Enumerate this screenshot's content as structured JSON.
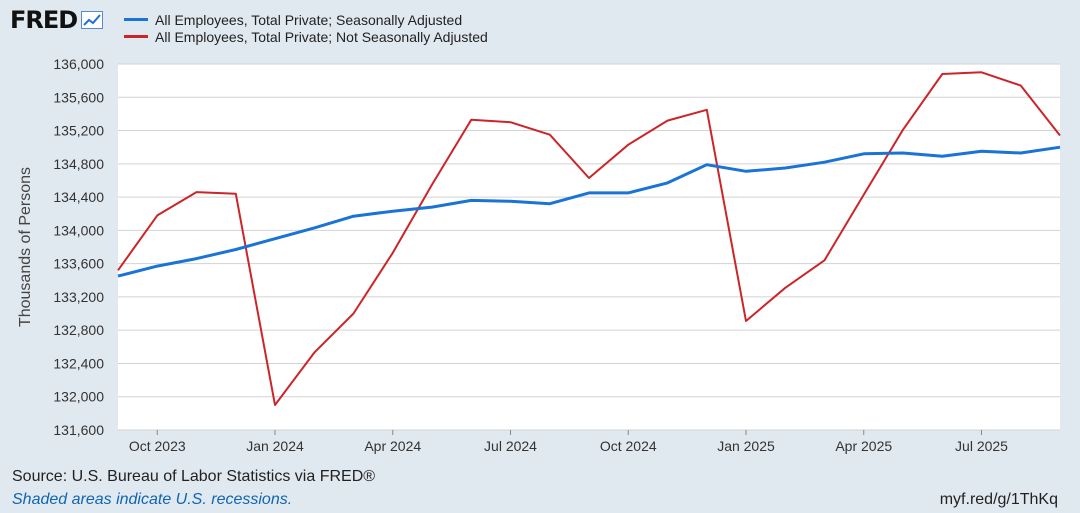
{
  "brand": {
    "logo_text": "FRED",
    "logo_icon": "chart-line-icon"
  },
  "footer": {
    "source": "Source: U.S. Bureau of Labor Statistics via FRED®",
    "note": "Shaded areas indicate U.S. recessions.",
    "url": "myf.red/g/1ThKq"
  },
  "colors": {
    "seasonally_adjusted": "#1a73d6",
    "not_seasonally_adjusted": "#cc2529",
    "plot_bg": "#ffffff",
    "page_bg": "#e1e9f0",
    "grid": "#cfcfcf"
  },
  "chart_data": {
    "type": "line",
    "title": "",
    "xlabel": "",
    "ylabel": "Thousands of Persons",
    "ylim": [
      131600,
      136000
    ],
    "y_ticks": [
      131600,
      132000,
      132400,
      132800,
      133200,
      133600,
      134000,
      134400,
      134800,
      135200,
      135600,
      136000
    ],
    "y_tick_labels": [
      "131,600",
      "132,000",
      "132,400",
      "132,800",
      "133,200",
      "133,600",
      "134,000",
      "134,400",
      "134,800",
      "135,200",
      "135,600",
      "136,000"
    ],
    "x_ticks": [
      "2023-10",
      "2024-01",
      "2024-04",
      "2024-07",
      "2024-10",
      "2025-01",
      "2025-04",
      "2025-07"
    ],
    "x_tick_labels": [
      "Oct 2023",
      "Jan 2024",
      "Apr 2024",
      "Jul 2024",
      "Oct 2024",
      "Jan 2025",
      "Apr 2025",
      "Jul 2025"
    ],
    "x": [
      "2023-09",
      "2023-10",
      "2023-11",
      "2023-12",
      "2024-01",
      "2024-02",
      "2024-03",
      "2024-04",
      "2024-05",
      "2024-06",
      "2024-07",
      "2024-08",
      "2024-09",
      "2024-10",
      "2024-11",
      "2024-12",
      "2025-01",
      "2025-02",
      "2025-03",
      "2025-04",
      "2025-05",
      "2025-06",
      "2025-07",
      "2025-08",
      "2025-09"
    ],
    "grid": "horizontal",
    "legend_position": "top-left",
    "series": [
      {
        "name": "All Employees, Total Private; Seasonally Adjusted",
        "color": "#1a73d6",
        "values": [
          133450,
          133570,
          133660,
          133770,
          133900,
          134030,
          134170,
          134230,
          134280,
          134360,
          134350,
          134320,
          134450,
          134450,
          134570,
          134790,
          134710,
          134750,
          134820,
          134920,
          134930,
          134890,
          134950,
          134930,
          135000
        ]
      },
      {
        "name": "All Employees, Total Private; Not Seasonally Adjusted",
        "color": "#cc2529",
        "values": [
          133520,
          134180,
          134460,
          134440,
          131900,
          132530,
          133000,
          133730,
          134550,
          135330,
          135300,
          135150,
          134630,
          135030,
          135320,
          135450,
          132910,
          133310,
          133640,
          134430,
          135210,
          135880,
          135900,
          135740,
          135140
        ]
      }
    ]
  }
}
